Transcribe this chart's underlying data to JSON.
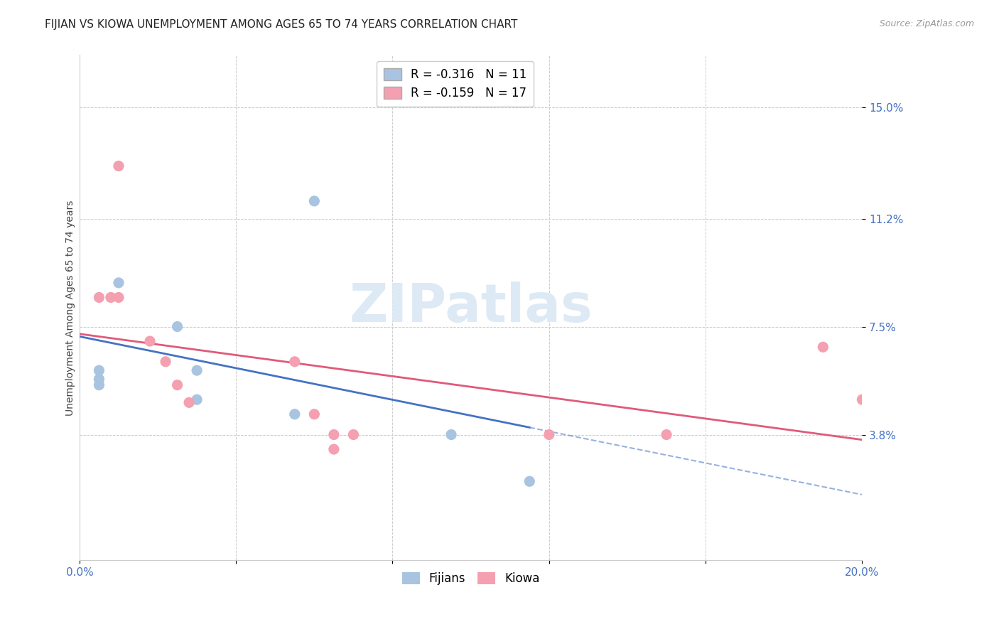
{
  "title": "FIJIAN VS KIOWA UNEMPLOYMENT AMONG AGES 65 TO 74 YEARS CORRELATION CHART",
  "source": "Source: ZipAtlas.com",
  "ylabel": "Unemployment Among Ages 65 to 74 years",
  "xlim": [
    0.0,
    0.2
  ],
  "ylim": [
    -0.005,
    0.168
  ],
  "ytick_values": [
    0.038,
    0.075,
    0.112,
    0.15
  ],
  "xtick_values": [
    0.0,
    0.04,
    0.08,
    0.12,
    0.16,
    0.2
  ],
  "fijian_color": "#a8c4e0",
  "kiowa_color": "#f4a0b0",
  "fijian_line_color": "#4472c4",
  "kiowa_line_color": "#e05a7a",
  "fijian_r": -0.316,
  "fijian_n": 11,
  "kiowa_r": -0.159,
  "kiowa_n": 17,
  "fijian_x": [
    0.005,
    0.005,
    0.005,
    0.01,
    0.025,
    0.03,
    0.03,
    0.055,
    0.06,
    0.095,
    0.115
  ],
  "fijian_y": [
    0.06,
    0.057,
    0.055,
    0.09,
    0.075,
    0.06,
    0.05,
    0.045,
    0.118,
    0.038,
    0.022
  ],
  "kiowa_x": [
    0.005,
    0.008,
    0.01,
    0.01,
    0.018,
    0.022,
    0.025,
    0.028,
    0.055,
    0.06,
    0.065,
    0.065,
    0.07,
    0.12,
    0.15,
    0.19,
    0.2
  ],
  "kiowa_y": [
    0.085,
    0.085,
    0.13,
    0.085,
    0.07,
    0.063,
    0.055,
    0.049,
    0.063,
    0.045,
    0.038,
    0.033,
    0.038,
    0.038,
    0.038,
    0.068,
    0.05
  ],
  "background_color": "#ffffff",
  "grid_color": "#cccccc",
  "watermark_color": "#ddeaf5",
  "tick_color": "#4472c4",
  "title_fontsize": 11,
  "label_fontsize": 10,
  "tick_fontsize": 11,
  "marker_size": 120
}
